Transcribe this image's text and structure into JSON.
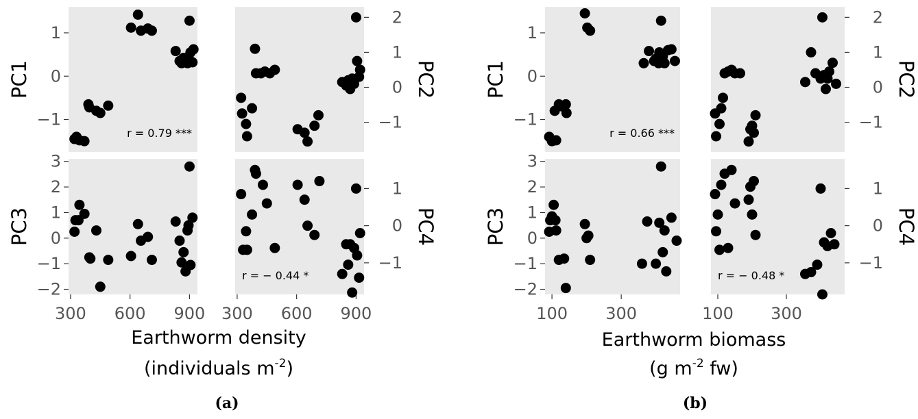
{
  "chart_data": [
    {
      "type": "scatter",
      "panel_label": "(a)",
      "xlabel_line1": "Earthworm density",
      "xlabel_line2": "(individuals m",
      "xlabel_sup": "-2",
      "xlabel_close": ")",
      "xlim": [
        290,
        940
      ],
      "xticks": [
        300,
        600,
        900
      ],
      "xtick_labels": [
        "300",
        "600",
        "900"
      ],
      "subplots": [
        {
          "ylabel": "PC1",
          "ylabel_side": "left",
          "ylim": [
            -1.75,
            1.6
          ],
          "yticks": [
            -1,
            0,
            1
          ],
          "ytick_labels": [
            "−1",
            "0",
            "1"
          ],
          "annotation": "r = 0.79 ***",
          "annotation_pos": "bottom-right",
          "points": [
            [
              320,
              -1.45
            ],
            [
              330,
              -1.4
            ],
            [
              345,
              -1.48
            ],
            [
              370,
              -1.5
            ],
            [
              390,
              -0.65
            ],
            [
              395,
              -0.72
            ],
            [
              430,
              -0.8
            ],
            [
              450,
              -0.85
            ],
            [
              490,
              -0.68
            ],
            [
              605,
              1.12
            ],
            [
              640,
              1.42
            ],
            [
              655,
              1.05
            ],
            [
              690,
              1.1
            ],
            [
              710,
              1.05
            ],
            [
              830,
              0.58
            ],
            [
              850,
              0.35
            ],
            [
              860,
              0.3
            ],
            [
              870,
              0.42
            ],
            [
              880,
              0.35
            ],
            [
              890,
              0.3
            ],
            [
              895,
              0.45
            ],
            [
              900,
              1.28
            ],
            [
              905,
              0.55
            ],
            [
              915,
              0.32
            ],
            [
              920,
              0.62
            ]
          ]
        },
        {
          "ylabel": "PC2",
          "ylabel_side": "right",
          "ylim": [
            -1.85,
            2.3
          ],
          "yticks": [
            -1,
            0,
            1,
            2
          ],
          "ytick_labels": [
            "−1",
            "0",
            "1",
            "2"
          ],
          "annotation": "",
          "annotation_pos": "",
          "points": [
            [
              320,
              -0.3
            ],
            [
              325,
              -0.75
            ],
            [
              345,
              -1.05
            ],
            [
              350,
              -1.4
            ],
            [
              375,
              -0.6
            ],
            [
              390,
              1.1
            ],
            [
              395,
              0.4
            ],
            [
              420,
              0.4
            ],
            [
              440,
              0.45
            ],
            [
              465,
              0.4
            ],
            [
              490,
              0.5
            ],
            [
              605,
              -1.2
            ],
            [
              640,
              -1.3
            ],
            [
              655,
              -1.55
            ],
            [
              690,
              -1.1
            ],
            [
              710,
              -0.8
            ],
            [
              830,
              0.15
            ],
            [
              850,
              0.05
            ],
            [
              860,
              0.2
            ],
            [
              870,
              -0.05
            ],
            [
              880,
              0.25
            ],
            [
              890,
              0.1
            ],
            [
              900,
              2.0
            ],
            [
              905,
              0.75
            ],
            [
              915,
              0.3
            ],
            [
              920,
              0.5
            ]
          ]
        },
        {
          "ylabel": "PC3",
          "ylabel_side": "left",
          "ylim": [
            -2.2,
            3.1
          ],
          "yticks": [
            -2,
            -1,
            0,
            1,
            2,
            3
          ],
          "ytick_labels": [
            "−2",
            "−1",
            "0",
            "1",
            "2",
            "3"
          ],
          "annotation": "",
          "annotation_pos": "",
          "points": [
            [
              320,
              0.25
            ],
            [
              325,
              0.7
            ],
            [
              340,
              0.7
            ],
            [
              345,
              1.3
            ],
            [
              370,
              0.95
            ],
            [
              395,
              -0.75
            ],
            [
              400,
              -0.8
            ],
            [
              430,
              0.3
            ],
            [
              450,
              -1.9
            ],
            [
              490,
              -0.85
            ],
            [
              605,
              -0.7
            ],
            [
              640,
              0.55
            ],
            [
              655,
              -0.1
            ],
            [
              690,
              0.05
            ],
            [
              710,
              -0.85
            ],
            [
              830,
              0.65
            ],
            [
              850,
              -0.1
            ],
            [
              860,
              -0.95
            ],
            [
              870,
              -0.55
            ],
            [
              880,
              -1.3
            ],
            [
              890,
              0.3
            ],
            [
              895,
              0.5
            ],
            [
              900,
              2.8
            ],
            [
              905,
              -1.05
            ],
            [
              915,
              0.8
            ]
          ]
        },
        {
          "ylabel": "PC4",
          "ylabel_side": "right",
          "ylim": [
            -1.85,
            1.8
          ],
          "yticks": [
            -1,
            0,
            1
          ],
          "ytick_labels": [
            "−1",
            "0",
            "1"
          ],
          "annotation": "r = − 0.44 *",
          "annotation_pos": "bottom-left",
          "points": [
            [
              320,
              0.85
            ],
            [
              330,
              -0.65
            ],
            [
              345,
              -0.15
            ],
            [
              350,
              -0.65
            ],
            [
              375,
              0.3
            ],
            [
              390,
              1.5
            ],
            [
              395,
              1.4
            ],
            [
              430,
              1.1
            ],
            [
              450,
              0.6
            ],
            [
              490,
              -0.6
            ],
            [
              605,
              1.1
            ],
            [
              640,
              0.7
            ],
            [
              655,
              0.0
            ],
            [
              690,
              -0.25
            ],
            [
              715,
              1.2
            ],
            [
              830,
              -1.3
            ],
            [
              850,
              -0.5
            ],
            [
              860,
              -1.05
            ],
            [
              870,
              -0.5
            ],
            [
              880,
              -1.8
            ],
            [
              890,
              -0.6
            ],
            [
              900,
              1.0
            ],
            [
              905,
              -0.8
            ],
            [
              915,
              -1.4
            ],
            [
              920,
              -0.2
            ]
          ]
        }
      ]
    },
    {
      "type": "scatter",
      "panel_label": "(b)",
      "xlabel_line1": "Earthworm biomass",
      "xlabel_line2": "(g m",
      "xlabel_sup": "-2",
      "xlabel_close": " fw)",
      "xlim": [
        80,
        470
      ],
      "xticks": [
        100,
        300
      ],
      "xtick_labels": [
        "100",
        "300"
      ],
      "subplots": [
        {
          "ylabel": "PC1",
          "ylabel_side": "left",
          "ylim": [
            -1.75,
            1.6
          ],
          "yticks": [
            -1,
            0,
            1
          ],
          "ytick_labels": [
            "−1",
            "0",
            "1"
          ],
          "annotation": "r = 0.66 ***",
          "annotation_pos": "bottom-right",
          "points": [
            [
              92,
              -1.4
            ],
            [
              100,
              -1.5
            ],
            [
              112,
              -1.48
            ],
            [
              108,
              -0.8
            ],
            [
              120,
              -0.65
            ],
            [
              130,
              -0.7
            ],
            [
              140,
              -0.65
            ],
            [
              142,
              -0.85
            ],
            [
              195,
              1.45
            ],
            [
              202,
              1.12
            ],
            [
              210,
              1.05
            ],
            [
              365,
              0.3
            ],
            [
              380,
              0.58
            ],
            [
              395,
              0.35
            ],
            [
              400,
              0.4
            ],
            [
              408,
              0.3
            ],
            [
              410,
              0.55
            ],
            [
              415,
              1.28
            ],
            [
              420,
              0.45
            ],
            [
              425,
              0.3
            ],
            [
              435,
              0.6
            ],
            [
              445,
              0.62
            ],
            [
              455,
              0.35
            ]
          ]
        },
        {
          "ylabel": "PC2",
          "ylabel_side": "right",
          "ylim": [
            -1.85,
            2.3
          ],
          "yticks": [
            -1,
            0,
            1,
            2
          ],
          "ytick_labels": [
            "−1",
            "0",
            "1",
            "2"
          ],
          "annotation": "",
          "annotation_pos": "",
          "points": [
            [
              92,
              -0.75
            ],
            [
              95,
              -1.4
            ],
            [
              105,
              -1.05
            ],
            [
              110,
              -0.6
            ],
            [
              115,
              -0.3
            ],
            [
              120,
              0.4
            ],
            [
              130,
              0.45
            ],
            [
              140,
              0.5
            ],
            [
              150,
              0.4
            ],
            [
              165,
              0.4
            ],
            [
              190,
              -1.55
            ],
            [
              195,
              -1.2
            ],
            [
              200,
              -1.1
            ],
            [
              205,
              -1.3
            ],
            [
              210,
              -0.8
            ],
            [
              355,
              0.15
            ],
            [
              372,
              1.0
            ],
            [
              385,
              0.4
            ],
            [
              400,
              0.25
            ],
            [
              405,
              2.0
            ],
            [
              410,
              0.35
            ],
            [
              415,
              -0.05
            ],
            [
              420,
              0.25
            ],
            [
              425,
              0.45
            ],
            [
              435,
              0.7
            ],
            [
              445,
              0.1
            ]
          ]
        },
        {
          "ylabel": "PC3",
          "ylabel_side": "left",
          "ylim": [
            -2.2,
            3.1
          ],
          "yticks": [
            -2,
            -1,
            0,
            1,
            2,
            3
          ],
          "ytick_labels": [
            "−2",
            "−1",
            "0",
            "1",
            "2",
            "3"
          ],
          "annotation": "",
          "annotation_pos": "",
          "points": [
            [
              92,
              0.25
            ],
            [
              95,
              0.7
            ],
            [
              100,
              0.85
            ],
            [
              105,
              1.3
            ],
            [
              110,
              0.7
            ],
            [
              112,
              0.3
            ],
            [
              120,
              -0.85
            ],
            [
              135,
              -0.8
            ],
            [
              140,
              -1.95
            ],
            [
              195,
              0.55
            ],
            [
              200,
              0.0
            ],
            [
              205,
              0.1
            ],
            [
              210,
              -0.85
            ],
            [
              360,
              -1.0
            ],
            [
              375,
              0.65
            ],
            [
              400,
              -1.0
            ],
            [
              410,
              0.6
            ],
            [
              415,
              2.8
            ],
            [
              420,
              -0.55
            ],
            [
              425,
              0.3
            ],
            [
              430,
              -1.3
            ],
            [
              445,
              0.8
            ],
            [
              460,
              -0.1
            ]
          ]
        },
        {
          "ylabel": "PC4",
          "ylabel_side": "right",
          "ylim": [
            -1.85,
            1.8
          ],
          "yticks": [
            -1,
            0,
            1
          ],
          "ytick_labels": [
            "−1",
            "0",
            "1"
          ],
          "annotation": "r = − 0.48 *",
          "annotation_pos": "bottom-left",
          "points": [
            [
              92,
              0.85
            ],
            [
              95,
              -0.15
            ],
            [
              100,
              0.3
            ],
            [
              105,
              -0.65
            ],
            [
              110,
              1.1
            ],
            [
              120,
              1.4
            ],
            [
              130,
              -0.6
            ],
            [
              140,
              1.5
            ],
            [
              150,
              0.6
            ],
            [
              190,
              0.7
            ],
            [
              195,
              1.05
            ],
            [
              200,
              0.3
            ],
            [
              205,
              1.2
            ],
            [
              210,
              -0.25
            ],
            [
              355,
              -1.3
            ],
            [
              372,
              -1.25
            ],
            [
              390,
              -1.05
            ],
            [
              400,
              1.0
            ],
            [
              405,
              -1.85
            ],
            [
              410,
              -0.45
            ],
            [
              420,
              -0.55
            ],
            [
              430,
              -0.2
            ],
            [
              440,
              -0.5
            ]
          ]
        }
      ]
    }
  ]
}
